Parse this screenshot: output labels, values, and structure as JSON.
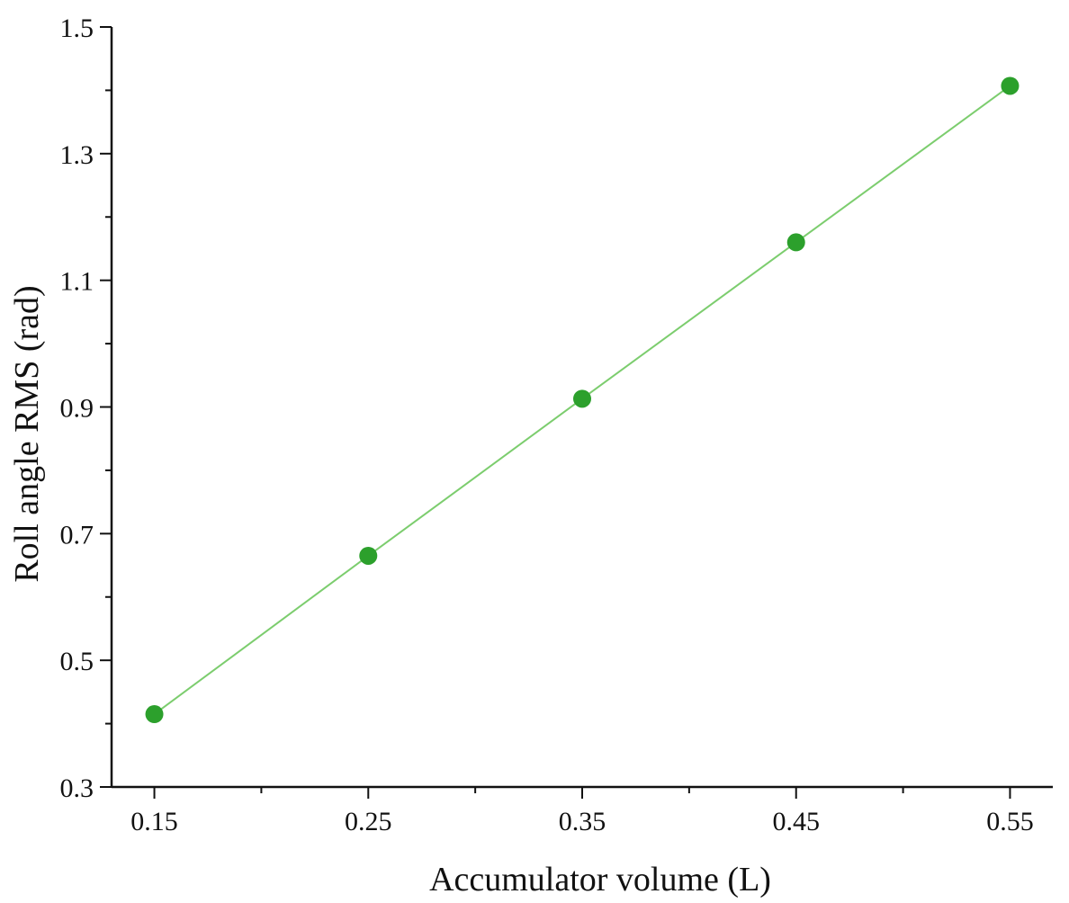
{
  "chart_data": {
    "type": "line",
    "xlabel": "Accumulator volume (L)",
    "ylabel": "Roll angle RMS (rad)",
    "xlim": [
      0.13,
      0.57
    ],
    "ylim": [
      0.3,
      1.5
    ],
    "x_ticks": [
      "0.15",
      "0.25",
      "0.35",
      "0.45",
      "0.55"
    ],
    "x_tick_values": [
      0.15,
      0.25,
      0.35,
      0.45,
      0.55
    ],
    "x_minor_ticks": [
      0.2,
      0.3,
      0.4,
      0.5
    ],
    "y_ticks": [
      "0.3",
      "0.5",
      "0.7",
      "0.9",
      "1.1",
      "1.3",
      "1.5"
    ],
    "y_tick_values": [
      0.3,
      0.5,
      0.7,
      0.9,
      1.1,
      1.3,
      1.5
    ],
    "y_minor_ticks": [
      0.4,
      0.6,
      0.8,
      1.0,
      1.2,
      1.4
    ],
    "grid": false,
    "series": [
      {
        "x": [
          0.15,
          0.25,
          0.35,
          0.45,
          0.55
        ],
        "y": [
          0.415,
          0.665,
          0.913,
          1.16,
          1.407
        ],
        "color": "#2ca02c",
        "line_color": "#7ccd6e",
        "marker": "circle"
      }
    ]
  }
}
